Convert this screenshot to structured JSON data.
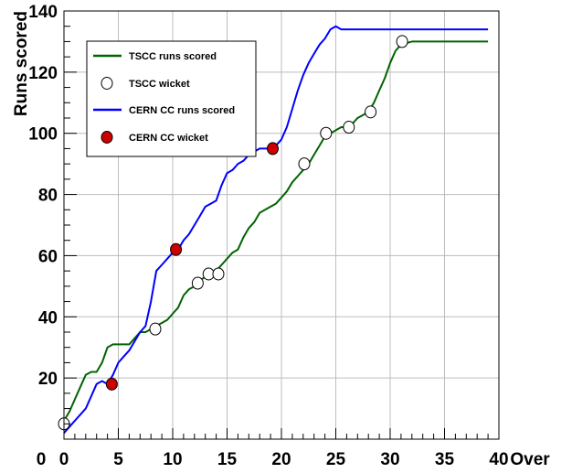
{
  "chart_data": {
    "type": "line",
    "xlabel": "Over",
    "ylabel": "Runs scored",
    "xlim": [
      0,
      40
    ],
    "ylim": [
      0,
      140
    ],
    "x_ticks": [
      0,
      5,
      10,
      15,
      20,
      25,
      30,
      35,
      40
    ],
    "x_tick_labels": [
      "0",
      "5",
      "10",
      "15",
      "20",
      "25",
      "30",
      "35",
      "40"
    ],
    "y_ticks": [
      20,
      40,
      60,
      80,
      100,
      120,
      140
    ],
    "y_tick_labels": [
      "20",
      "40",
      "60",
      "80",
      "100",
      "120",
      "140"
    ],
    "origin_label": "0",
    "grid": true,
    "legend_position": "top-left",
    "series": [
      {
        "name": "TSCC runs scored",
        "kind": "line",
        "color": "#006400",
        "x": [
          0,
          0.5,
          1,
          1.5,
          2,
          2.5,
          3,
          3.5,
          4,
          4.5,
          5,
          5.5,
          6,
          6.5,
          7,
          7.5,
          8,
          8.5,
          9,
          9.5,
          10,
          10.5,
          11,
          11.5,
          12,
          12.5,
          13,
          13.5,
          14,
          14.5,
          15,
          15.5,
          16,
          16.5,
          17,
          17.5,
          18,
          18.5,
          19,
          19.5,
          20,
          20.5,
          21,
          21.5,
          22,
          22.5,
          23,
          23.5,
          24,
          24.5,
          25,
          25.5,
          26,
          26.5,
          27,
          27.5,
          28,
          28.5,
          29,
          29.5,
          30,
          30.5,
          31,
          32,
          33,
          34,
          35,
          36,
          37,
          38,
          39
        ],
        "y": [
          6,
          9,
          13,
          17,
          21,
          22,
          22,
          25,
          30,
          31,
          31,
          31,
          31,
          33,
          35,
          35,
          36,
          37,
          38,
          39,
          41,
          43,
          47,
          49,
          50,
          52,
          53,
          54,
          55,
          57,
          59,
          61,
          62,
          66,
          69,
          71,
          74,
          75,
          76,
          77,
          79,
          81,
          84,
          86,
          88,
          90,
          93,
          96,
          99,
          100,
          101,
          102,
          102,
          103,
          105,
          106,
          107,
          110,
          114,
          118,
          123,
          127,
          129,
          130,
          130,
          130,
          130,
          130,
          130,
          130,
          130
        ]
      },
      {
        "name": "TSCC wicket",
        "kind": "markers",
        "color": "#ffffff",
        "x": [
          0,
          8.4,
          12.3,
          13.3,
          14.2,
          22.1,
          24.1,
          26.2,
          28.2,
          31.1
        ],
        "y": [
          5,
          36,
          51,
          54,
          54,
          90,
          100,
          102,
          107,
          130
        ]
      },
      {
        "name": "CERN CC runs scored",
        "kind": "line",
        "color": "#0000ff",
        "x": [
          0,
          0.5,
          1,
          1.5,
          2,
          2.5,
          3,
          3.5,
          4,
          4.5,
          5,
          5.5,
          6,
          6.5,
          7,
          7.5,
          8,
          8.5,
          9,
          9.5,
          10,
          10.5,
          11,
          11.5,
          12,
          12.5,
          13,
          13.5,
          14,
          14.5,
          15,
          15.5,
          16,
          16.5,
          17,
          17.5,
          18,
          18.5,
          19,
          19.5,
          20,
          20.5,
          21,
          21.5,
          22,
          22.5,
          23,
          23.5,
          24,
          24.5,
          25,
          25.5,
          26,
          27,
          28,
          29,
          30,
          31,
          32,
          33,
          34,
          35,
          36,
          37,
          38,
          39
        ],
        "y": [
          2,
          4,
          6,
          8,
          10,
          14,
          18,
          19,
          18,
          21,
          25,
          27,
          29,
          32,
          35,
          37,
          45,
          55,
          57,
          59,
          61,
          62,
          65,
          67,
          70,
          73,
          76,
          77,
          78,
          83,
          87,
          88,
          90,
          91,
          93,
          94,
          95,
          95,
          95,
          96,
          98,
          102,
          108,
          114,
          119,
          123,
          126,
          129,
          131,
          134,
          135,
          134,
          134,
          134,
          134,
          134,
          134,
          134,
          134,
          134,
          134,
          134,
          134,
          134,
          134,
          134
        ]
      },
      {
        "name": "CERN CC wicket",
        "kind": "markers",
        "color": "#cc0000",
        "x": [
          4.4,
          10.3,
          19.2
        ],
        "y": [
          18,
          62,
          95
        ]
      }
    ]
  }
}
